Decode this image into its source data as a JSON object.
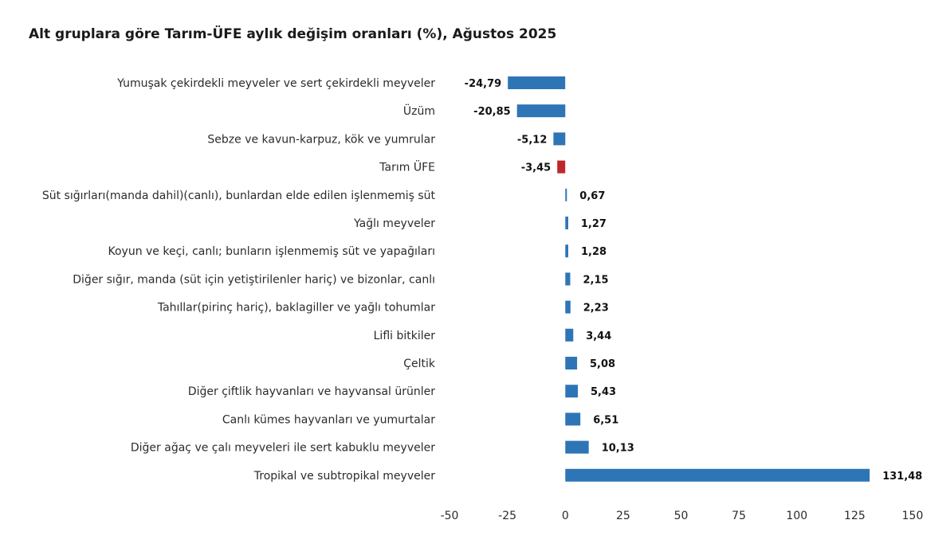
{
  "chart_data": {
    "type": "bar",
    "orientation": "horizontal",
    "title": "Alt gruplara göre Tarım-ÜFE aylık değişim oranları (%), Ağustos 2025",
    "xlabel": "",
    "ylabel": "",
    "xlim": [
      -50,
      150
    ],
    "ticks": [
      -50,
      -25,
      0,
      25,
      50,
      75,
      100,
      125,
      150
    ],
    "grid": false,
    "legend": "none",
    "colors": {
      "default": "#2e75b6",
      "highlight": "#c0272d"
    },
    "highlight_category": "Tarım ÜFE",
    "categories": [
      "Yumuşak çekirdekli meyveler ve sert çekirdekli meyveler",
      "Üzüm",
      "Sebze ve kavun-karpuz, kök ve yumrular",
      "Tarım ÜFE",
      "Süt sığırları(manda dahil)(canlı), bunlardan elde edilen işlenmemiş süt",
      "Yağlı meyveler",
      "Koyun ve keçi, canlı; bunların işlenmemiş süt ve yapağıları",
      "Diğer sığır, manda (süt için yetiştirilenler hariç) ve bizonlar, canlı",
      "Tahıllar(pirinç hariç), baklagiller ve yağlı tohumlar",
      "Lifli bitkiler",
      "Çeltik",
      "Diğer çiftlik hayvanları ve hayvansal ürünler",
      "Canlı kümes hayvanları ve yumurtalar",
      "Diğer ağaç ve çalı meyveleri ile sert kabuklu meyveler",
      "Tropikal ve subtropikal meyveler"
    ],
    "values": [
      -24.79,
      -20.85,
      -5.12,
      -3.45,
      0.67,
      1.27,
      1.28,
      2.15,
      2.23,
      3.44,
      5.08,
      5.43,
      6.51,
      10.13,
      131.48
    ],
    "value_labels": [
      "-24,79",
      "-20,85",
      "-5,12",
      "-3,45",
      "0,67",
      "1,27",
      "1,28",
      "2,15",
      "2,23",
      "3,44",
      "5,08",
      "5,43",
      "6,51",
      "10,13",
      "131,48"
    ]
  }
}
